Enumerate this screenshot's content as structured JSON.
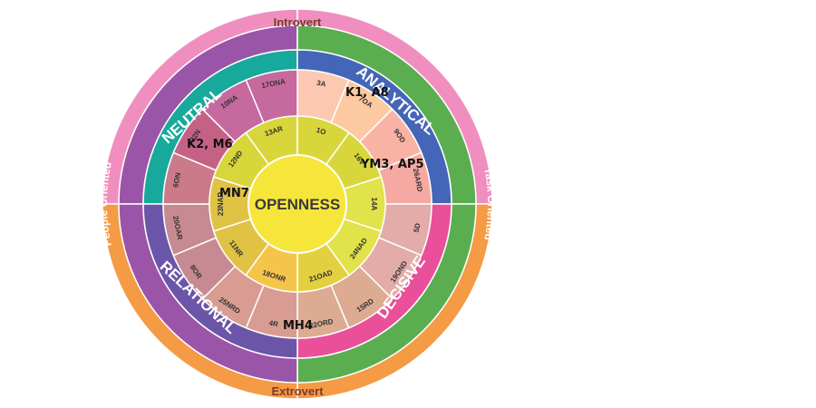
{
  "center": "OPENNESS",
  "outer_ring": {
    "top": "Introvert",
    "bottom": "Extrovert",
    "left": "People Oriented",
    "right": "Task Oriented",
    "colors": {
      "tl": "#f08fbf",
      "tr": "#f08fbf",
      "bl": "#f59a45",
      "br": "#f59a45"
    }
  },
  "second_ring": {
    "colors": {
      "tl": "#9b55a8",
      "tr": "#5aae4f",
      "bl": "#9b55a8",
      "br": "#5aae4f"
    }
  },
  "quadrants": [
    {
      "id": "neutral",
      "label": "NEUTRAL",
      "color": "#17a99b"
    },
    {
      "id": "analytical",
      "label": "ANALYTICAL",
      "color": "#4466b8"
    },
    {
      "id": "decisive",
      "label": "DECISIVE",
      "color": "#ea4f9a"
    },
    {
      "id": "relational",
      "label": "RELATIONAL",
      "color": "#6b55a8"
    }
  ],
  "outer_segments": [
    {
      "label": "3A",
      "color": "#fcc8b2"
    },
    {
      "label": "7OA",
      "color": "#fcc9a2"
    },
    {
      "label": "9OD",
      "color": "#f9b3a4"
    },
    {
      "label": "26ARD",
      "color": "#f6a9a2"
    },
    {
      "label": "5D",
      "color": "#e3aca8"
    },
    {
      "label": "19OND",
      "color": "#e3aca8"
    },
    {
      "label": "15RD",
      "color": "#dcab91"
    },
    {
      "label": "22ORD",
      "color": "#dcab91"
    },
    {
      "label": "4R",
      "color": "#d89c92"
    },
    {
      "label": "25NRD",
      "color": "#d89c92"
    },
    {
      "label": "8OR",
      "color": "#c78a92"
    },
    {
      "label": "20OAR",
      "color": "#c78a92"
    },
    {
      "label": "6ON",
      "color": "#ca7a89"
    },
    {
      "label": "22N",
      "color": "#c66186"
    },
    {
      "label": "10NA",
      "color": "#c6699e"
    },
    {
      "label": "17ONA",
      "color": "#c6699e"
    }
  ],
  "inner_segments": [
    {
      "label": "13AR",
      "color": "#d8d63a"
    },
    {
      "label": "1O",
      "color": "#d8d63a"
    },
    {
      "label": "16V",
      "color": "#d8d63a"
    },
    {
      "label": "14A",
      "color": "#e2e24a"
    },
    {
      "label": "24NAD",
      "color": "#e2e24a"
    },
    {
      "label": "21OAD",
      "color": "#e3d040"
    },
    {
      "label": "18ONR",
      "color": "#f5c54a"
    },
    {
      "label": "11NR",
      "color": "#e0c245"
    },
    {
      "label": "23NAR",
      "color": "#e0c245"
    },
    {
      "label": "12ND",
      "color": "#d8d63a"
    }
  ],
  "annotations": [
    "K1, A8",
    "YM3, AP5",
    "K2, M6",
    "MN7",
    "MH4"
  ]
}
